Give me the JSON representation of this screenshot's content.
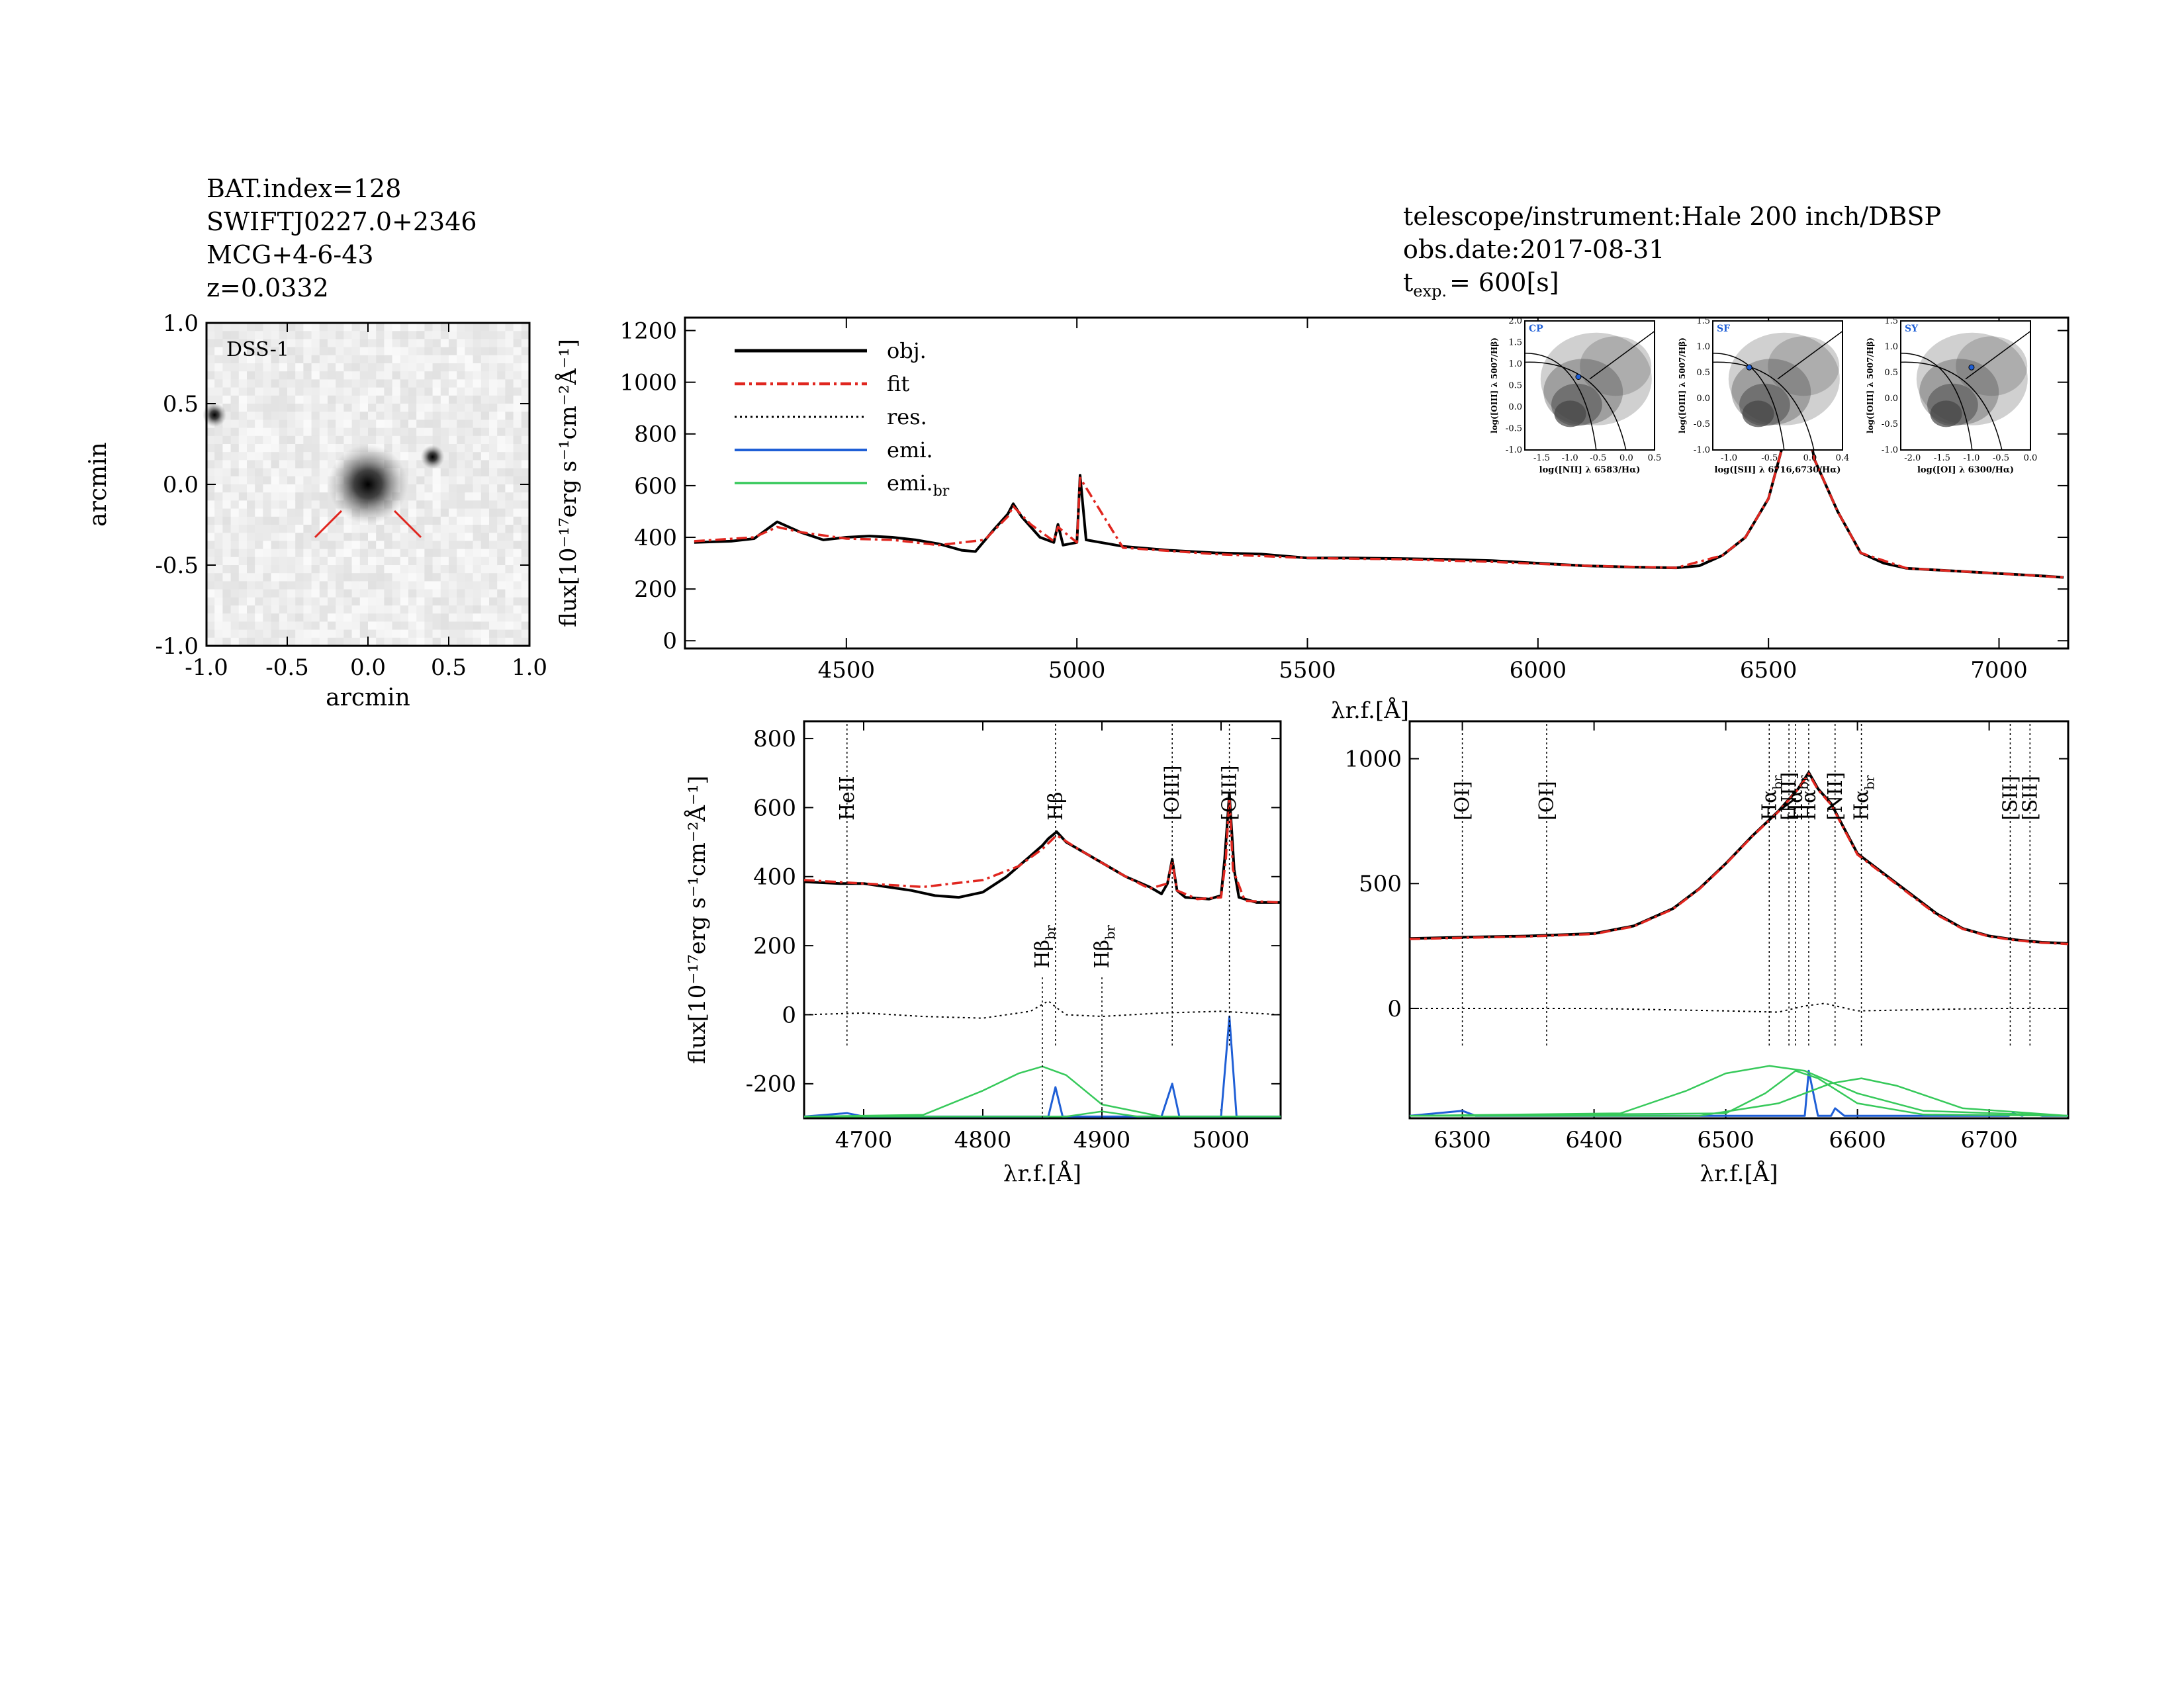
{
  "header_left": {
    "bat_index": "BAT.index=128",
    "swift_name": "SWIFTJ0227.0+2346",
    "galaxy": "MCG+4-6-43",
    "redshift": "z=0.0332"
  },
  "header_right": {
    "instrument": "telescope/instrument:Hale 200 inch/DBSP",
    "obs_date": "obs.date:2017-08-31",
    "texp_base": "t",
    "texp_sub": "exp.",
    "texp_value": "= 600[s]"
  },
  "colors": {
    "obj": "#000000",
    "fit": "#e0261f",
    "res": "#000000",
    "emi": "#1f5fd6",
    "emi_br": "#36c95a"
  },
  "chart_data": [
    {
      "id": "dss-image",
      "type": "heatmap",
      "label": "DSS-1",
      "xlabel": "arcmin",
      "ylabel": "arcmin",
      "xlim": [
        -1.0,
        1.0
      ],
      "ylim": [
        -1.0,
        1.0
      ],
      "xticks": [
        "-1.0",
        "-0.5",
        "0.0",
        "0.5",
        "1.0"
      ],
      "yticks": [
        "-1.0",
        "-0.5",
        "0.0",
        "0.5",
        "1.0"
      ],
      "sources": [
        {
          "x": 0.0,
          "y": 0.0,
          "brightness": 1.0
        },
        {
          "x": 0.4,
          "y": 0.17,
          "brightness": 0.8
        },
        {
          "x": -0.95,
          "y": 0.43,
          "brightness": 0.85
        }
      ]
    },
    {
      "id": "full-spectrum",
      "type": "line",
      "xlabel": "λr.f.[Å]",
      "ylabel": "flux[10⁻¹⁷erg s⁻¹cm⁻²Å⁻¹]",
      "xlim": [
        4150,
        7150
      ],
      "ylim": [
        -30,
        1250
      ],
      "xticks": [
        4500,
        5000,
        5500,
        6000,
        6500,
        7000
      ],
      "yticks": [
        0,
        200,
        400,
        600,
        800,
        1000,
        1200
      ],
      "legend": [
        "obj.",
        "fit",
        "res.",
        "emi.",
        "emi.br"
      ],
      "series": [
        {
          "name": "obj.",
          "x": [
            4170,
            4250,
            4300,
            4350,
            4400,
            4450,
            4500,
            4550,
            4600,
            4650,
            4700,
            4750,
            4780,
            4820,
            4850,
            4862,
            4880,
            4920,
            4950,
            4959,
            4970,
            5000,
            5007,
            5020,
            5100,
            5200,
            5300,
            5400,
            5500,
            5600,
            5700,
            5800,
            5900,
            6000,
            6100,
            6200,
            6300,
            6350,
            6400,
            6450,
            6500,
            6530,
            6563,
            6580,
            6600,
            6650,
            6700,
            6750,
            6800,
            6900,
            7000,
            7100,
            7140
          ],
          "y": [
            380,
            385,
            395,
            460,
            420,
            390,
            400,
            405,
            400,
            390,
            375,
            350,
            345,
            430,
            490,
            530,
            480,
            400,
            380,
            450,
            370,
            380,
            640,
            390,
            365,
            350,
            340,
            335,
            320,
            320,
            318,
            315,
            310,
            300,
            290,
            285,
            282,
            290,
            330,
            400,
            550,
            750,
            945,
            870,
            700,
            500,
            340,
            300,
            280,
            270,
            260,
            250,
            245
          ]
        },
        {
          "name": "fit",
          "x": [
            4170,
            4300,
            4350,
            4400,
            4500,
            4600,
            4700,
            4800,
            4850,
            4862,
            4900,
            4950,
            4959,
            5000,
            5007,
            5100,
            5300,
            5500,
            5700,
            5900,
            6100,
            6300,
            6400,
            6450,
            6500,
            6530,
            6563,
            6600,
            6650,
            6700,
            6800,
            7000,
            7140
          ],
          "y": [
            385,
            400,
            440,
            420,
            395,
            390,
            370,
            390,
            480,
            520,
            450,
            385,
            440,
            380,
            630,
            360,
            335,
            320,
            315,
            305,
            290,
            282,
            330,
            400,
            550,
            750,
            940,
            700,
            500,
            340,
            280,
            260,
            245
          ]
        }
      ]
    },
    {
      "id": "hbeta-zoom",
      "type": "line",
      "xlabel": "λr.f.[Å]",
      "ylabel": "flux[10⁻¹⁷erg s⁻¹cm⁻²Å⁻¹]",
      "xlim": [
        4650,
        5050
      ],
      "ylim": [
        -300,
        850
      ],
      "xticks": [
        4700,
        4800,
        4900,
        5000
      ],
      "yticks": [
        -200,
        0,
        200,
        400,
        600,
        800
      ],
      "line_markers": [
        {
          "x": 4686,
          "label": "HeII",
          "pos": "top"
        },
        {
          "x": 4861,
          "label": "Hβ",
          "pos": "top"
        },
        {
          "x": 4959,
          "label": "[OIII]",
          "pos": "top"
        },
        {
          "x": 5007,
          "label": "[OIII]",
          "pos": "top"
        },
        {
          "x": 4850,
          "label": "Hβbr",
          "pos": "mid"
        },
        {
          "x": 4900,
          "label": "Hβbr",
          "pos": "mid"
        }
      ],
      "series": [
        {
          "name": "obj.",
          "x": [
            4650,
            4680,
            4700,
            4720,
            4740,
            4760,
            4780,
            4800,
            4820,
            4840,
            4850,
            4855,
            4862,
            4870,
            4880,
            4900,
            4920,
            4940,
            4950,
            4955,
            4959,
            4963,
            4970,
            4990,
            5000,
            5003,
            5007,
            5011,
            5015,
            5030,
            5050
          ],
          "y": [
            385,
            380,
            380,
            370,
            360,
            345,
            340,
            355,
            400,
            460,
            490,
            510,
            530,
            500,
            480,
            440,
            400,
            370,
            350,
            380,
            450,
            360,
            340,
            335,
            345,
            450,
            640,
            420,
            340,
            325,
            325
          ]
        },
        {
          "name": "fit",
          "x": [
            4650,
            4700,
            4750,
            4800,
            4830,
            4850,
            4862,
            4880,
            4900,
            4920,
            4940,
            4955,
            4959,
            4963,
            4980,
            5000,
            5004,
            5007,
            5010,
            5020,
            5050
          ],
          "y": [
            390,
            380,
            370,
            390,
            430,
            480,
            520,
            480,
            440,
            400,
            365,
            380,
            445,
            360,
            335,
            340,
            450,
            630,
            420,
            330,
            325
          ]
        },
        {
          "name": "res.",
          "x": [
            4650,
            4700,
            4750,
            4800,
            4840,
            4855,
            4862,
            4870,
            4900,
            4950,
            5000,
            5050
          ],
          "y": [
            0,
            5,
            -5,
            -10,
            10,
            40,
            20,
            0,
            -5,
            5,
            10,
            0
          ]
        },
        {
          "name": "emi.",
          "x": [
            4650,
            4686,
            4700,
            4855,
            4861,
            4867,
            4950,
            4959,
            4965,
            5000,
            5007,
            5013,
            5050
          ],
          "y": [
            -295,
            -285,
            -295,
            -295,
            -210,
            -295,
            -295,
            -200,
            -295,
            -295,
            -5,
            -295,
            -295
          ]
        },
        {
          "name": "emi.br",
          "x": [
            4650,
            4750,
            4800,
            4830,
            4850,
            4870,
            4900,
            4950,
            5050
          ],
          "y": [
            -295,
            -290,
            -220,
            -170,
            -150,
            -175,
            -260,
            -295,
            -295
          ]
        },
        {
          "name": "emi.br",
          "x": [
            4650,
            4870,
            4890,
            4900,
            4910,
            4930,
            5050
          ],
          "y": [
            -295,
            -295,
            -285,
            -280,
            -285,
            -295,
            -295
          ]
        }
      ]
    },
    {
      "id": "halpha-zoom",
      "type": "line",
      "xlabel": "λr.f.[Å]",
      "ylabel": "",
      "xlim": [
        6260,
        6760
      ],
      "ylim": [
        -440,
        1150
      ],
      "xticks": [
        6300,
        6400,
        6500,
        6600,
        6700
      ],
      "yticks": [
        0,
        500,
        1000
      ],
      "line_markers": [
        {
          "x": 6300,
          "label": "[OI]",
          "pos": "top"
        },
        {
          "x": 6364,
          "label": "[OI]",
          "pos": "top"
        },
        {
          "x": 6533,
          "label": "Hαbr",
          "pos": "top"
        },
        {
          "x": 6548,
          "label": "[NII]",
          "pos": "top"
        },
        {
          "x": 6553,
          "label": "Hαbr",
          "pos": "top"
        },
        {
          "x": 6563,
          "label": "Hα",
          "pos": "top"
        },
        {
          "x": 6583,
          "label": "[NII]",
          "pos": "top"
        },
        {
          "x": 6603,
          "label": "Hαbr",
          "pos": "top"
        },
        {
          "x": 6716,
          "label": "[SII]",
          "pos": "top"
        },
        {
          "x": 6731,
          "label": "[SII]",
          "pos": "top"
        }
      ],
      "series": [
        {
          "name": "obj.",
          "x": [
            6260,
            6300,
            6350,
            6400,
            6430,
            6460,
            6480,
            6500,
            6520,
            6540,
            6555,
            6563,
            6570,
            6580,
            6590,
            6600,
            6620,
            6640,
            6660,
            6680,
            6700,
            6720,
            6740,
            6760
          ],
          "y": [
            280,
            285,
            290,
            300,
            330,
            400,
            480,
            580,
            690,
            790,
            880,
            945,
            880,
            820,
            720,
            620,
            540,
            460,
            380,
            320,
            290,
            275,
            265,
            260
          ]
        },
        {
          "name": "fit",
          "x": [
            6260,
            6300,
            6350,
            6400,
            6430,
            6460,
            6480,
            6500,
            6520,
            6540,
            6555,
            6563,
            6570,
            6580,
            6590,
            6600,
            6620,
            6640,
            6660,
            6680,
            6700,
            6720,
            6740,
            6760
          ],
          "y": [
            278,
            283,
            288,
            298,
            328,
            398,
            478,
            578,
            688,
            788,
            878,
            940,
            876,
            816,
            716,
            616,
            536,
            456,
            376,
            318,
            288,
            273,
            263,
            258
          ]
        },
        {
          "name": "res.",
          "x": [
            6260,
            6400,
            6500,
            6540,
            6560,
            6575,
            6600,
            6700,
            6760
          ],
          "y": [
            0,
            0,
            -10,
            -15,
            10,
            20,
            -10,
            0,
            0
          ]
        },
        {
          "name": "emi.",
          "x": [
            6260,
            6300,
            6310,
            6560,
            6563,
            6570,
            6580,
            6583,
            6590,
            6715,
            6718,
            6725,
            6731,
            6740,
            6760
          ],
          "y": [
            -430,
            -410,
            -430,
            -430,
            -250,
            -430,
            -430,
            -400,
            -430,
            -430,
            -420,
            -430,
            -420,
            -430,
            -430
          ]
        },
        {
          "name": "emi.br",
          "x": [
            6260,
            6420,
            6470,
            6500,
            6533,
            6560,
            6600,
            6650,
            6760
          ],
          "y": [
            -430,
            -420,
            -330,
            -260,
            -230,
            -250,
            -340,
            -410,
            -430
          ]
        },
        {
          "name": "emi.br",
          "x": [
            6260,
            6500,
            6530,
            6553,
            6570,
            6600,
            6650,
            6760
          ],
          "y": [
            -430,
            -420,
            -340,
            -250,
            -280,
            -380,
            -425,
            -430
          ]
        },
        {
          "name": "emi.br",
          "x": [
            6260,
            6480,
            6540,
            6580,
            6603,
            6630,
            6680,
            6760
          ],
          "y": [
            -430,
            -430,
            -380,
            -300,
            -280,
            -310,
            -400,
            -430
          ]
        }
      ]
    },
    {
      "id": "bpt-nii",
      "type": "scatter",
      "label": "CP",
      "xlabel": "log([NII] λ 6583/Hα)",
      "ylabel": "log([OIII] λ 5007/Hβ)",
      "xlim": [
        -1.8,
        0.5
      ],
      "ylim": [
        -1.0,
        2.0
      ],
      "xticks": [
        "-1.5",
        "-1.0",
        "-0.5",
        "0.0",
        "0.5"
      ],
      "yticks": [
        "-1.0",
        "-0.5",
        "0.0",
        "0.5",
        "1.0",
        "1.5",
        "2.0"
      ],
      "points": [
        {
          "x": -0.85,
          "y": 0.7
        }
      ]
    },
    {
      "id": "bpt-sii",
      "type": "scatter",
      "label": "SF",
      "xlabel": "log([SII] λ 6716,6730/Hα)",
      "ylabel": "log([OIII] λ 5007/Hβ)",
      "xlim": [
        -1.2,
        0.4
      ],
      "ylim": [
        -1.0,
        1.5
      ],
      "xticks": [
        "-1.0",
        "-0.5",
        "0.0",
        "0.4"
      ],
      "yticks": [
        "-1.0",
        "-0.5",
        "0.0",
        "0.5",
        "1.0",
        "1.5"
      ],
      "points": [
        {
          "x": -0.75,
          "y": 0.6
        }
      ]
    },
    {
      "id": "bpt-oi",
      "type": "scatter",
      "label": "SY",
      "xlabel": "log([OI] λ 6300/Hα)",
      "ylabel": "log([OIII] λ 5007/Hβ)",
      "xlim": [
        -2.2,
        0.0
      ],
      "ylim": [
        -1.0,
        1.5
      ],
      "xticks": [
        "-2.0",
        "-1.5",
        "-1.0",
        "-0.5",
        "0.0"
      ],
      "yticks": [
        "-1.0",
        "-0.5",
        "0.0",
        "0.5",
        "1.0",
        "1.5"
      ],
      "points": [
        {
          "x": -1.0,
          "y": 0.6
        }
      ]
    }
  ]
}
